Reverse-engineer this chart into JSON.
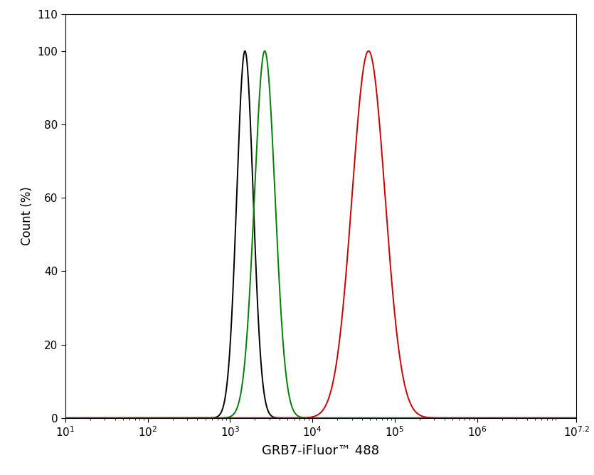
{
  "title": "",
  "xlabel": "GRB7-iFluor™ 488",
  "ylabel": "Count (%)",
  "xlim_log": [
    1,
    7.2
  ],
  "ylim": [
    0,
    110
  ],
  "yticks": [
    0,
    20,
    40,
    60,
    80,
    100
  ],
  "ytick_top": 110,
  "xticks_major_exp": [
    1,
    2,
    3,
    4,
    5,
    6
  ],
  "xtick_last_exp": 7.2,
  "black_peak_log": 3.18,
  "black_sigma_log": 0.1,
  "green_peak_log": 3.42,
  "green_sigma_log": 0.125,
  "red_peak_log": 4.68,
  "red_sigma_log": 0.2,
  "black_color": "#000000",
  "green_color": "#008000",
  "red_color": "#cc0000",
  "linewidth": 1.4,
  "background_color": "#ffffff",
  "xlabel_fontsize": 13,
  "ylabel_fontsize": 12,
  "tick_fontsize": 11
}
